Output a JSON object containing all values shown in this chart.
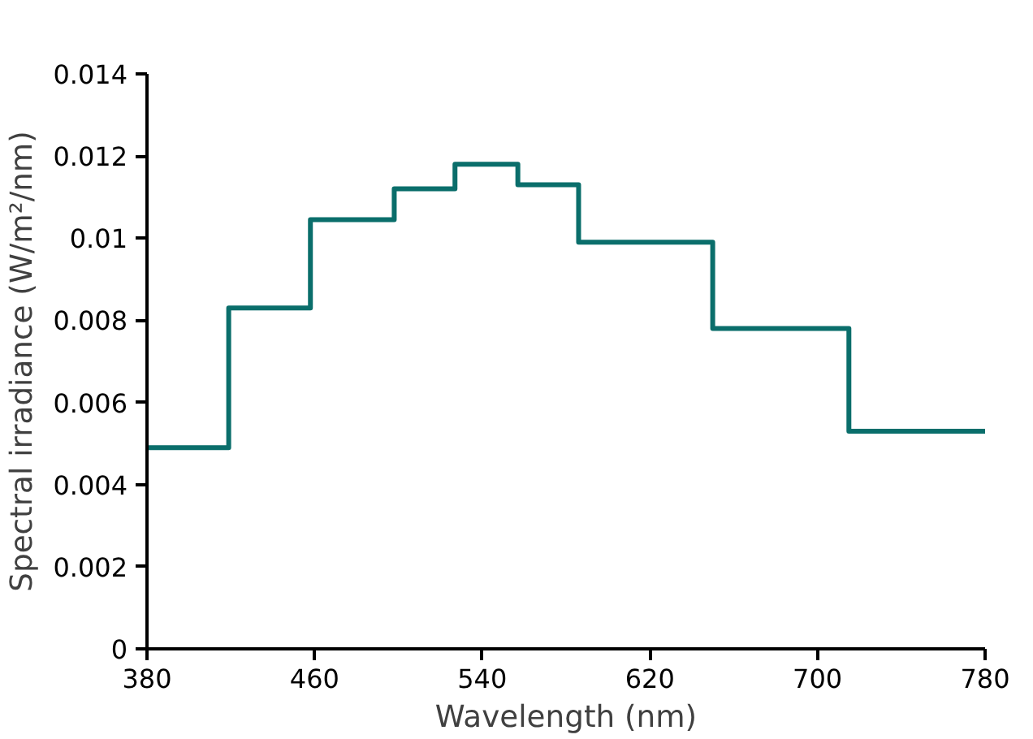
{
  "chart_data": {
    "type": "step",
    "xlabel": "Wavelength (nm)",
    "ylabel": "Spectral irradiance (W/m²/nm)",
    "x": [
      380,
      419,
      458,
      498,
      527,
      557,
      586,
      650,
      715,
      780
    ],
    "series": [
      {
        "color": "#0a6e6b",
        "values": [
          0.0049,
          0.0083,
          0.01045,
          0.0112,
          0.0118,
          0.0113,
          0.0099,
          0.0078,
          0.0053,
          0.0053
        ]
      }
    ],
    "xlim": [
      380,
      780
    ],
    "xticks": [
      380,
      460,
      540,
      620,
      700,
      780
    ],
    "ylim": [
      0,
      0.014
    ],
    "yticks": [
      0,
      {
        "value": 0.002,
        "label": "0.002"
      },
      {
        "value": 0.004,
        "label": "0.004"
      },
      {
        "value": 0.006,
        "label": "0.006"
      },
      {
        "value": 0.008,
        "label": "0.008"
      },
      {
        "value": 0.01,
        "label": "0.01"
      },
      {
        "value": 0.012,
        "label": "0.012"
      },
      {
        "value": 0.014,
        "label": "0.014"
      }
    ],
    "grid": false
  }
}
